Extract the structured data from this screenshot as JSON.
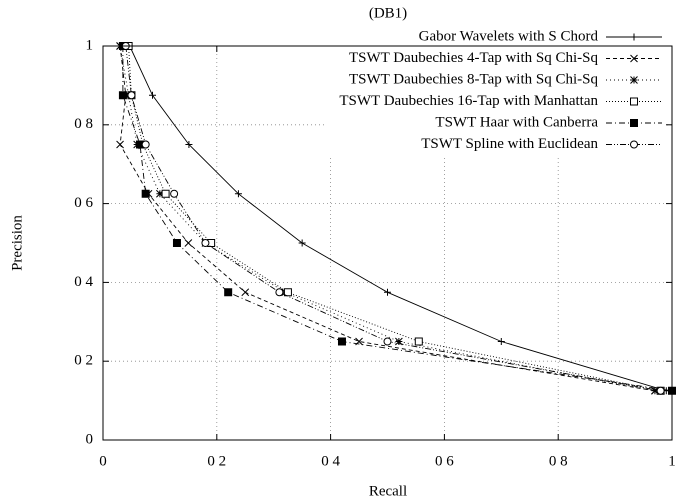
{
  "chart_data": {
    "type": "line",
    "title": "(DB1)",
    "x_label": "Recall",
    "y_label": "Precision",
    "xlim": [
      0,
      1
    ],
    "ylim": [
      0,
      1
    ],
    "xticks": [
      0,
      {
        "value": 0.2,
        "label": "0 2"
      },
      {
        "value": 0.4,
        "label": "0 4"
      },
      {
        "value": 0.6,
        "label": "0 6"
      },
      {
        "value": 0.8,
        "label": "0 8"
      },
      1
    ],
    "yticks": [
      0,
      {
        "value": 0.2,
        "label": "0 2"
      },
      {
        "value": 0.4,
        "label": "0 4"
      },
      {
        "value": 0.6,
        "label": "0 6"
      },
      {
        "value": 0.8,
        "label": "0 8"
      },
      1
    ],
    "grid": true,
    "legend": "top-right",
    "series": [
      {
        "name": "Gabor Wavelets with S Chord",
        "color": "#000000",
        "marker": "plus",
        "dash": "none",
        "x": [
          0.047,
          0.087,
          0.151,
          0.238,
          0.35,
          0.5,
          0.7,
          0.99
        ],
        "values": [
          1,
          0.875,
          0.75,
          0.625,
          0.5,
          0.375,
          0.25,
          0.125
        ]
      },
      {
        "name": "TSWT Daubechies 4-Tap with Sq  Chi-Sq",
        "color": "#000000",
        "marker": "cross",
        "dash": "4,3",
        "x": [
          0.03,
          0.04,
          0.03,
          0.08,
          0.15,
          0.25,
          0.45,
          0.97
        ],
        "values": [
          1,
          0.875,
          0.75,
          0.625,
          0.5,
          0.375,
          0.25,
          0.125
        ]
      },
      {
        "name": "TSWT Daubechies 8-Tap with Sq  Chi-Sq",
        "color": "#000000",
        "marker": "star",
        "dash": "1,3",
        "x": [
          0.03,
          0.045,
          0.06,
          0.1,
          0.18,
          0.32,
          0.52,
          0.97
        ],
        "values": [
          1,
          0.875,
          0.75,
          0.625,
          0.5,
          0.375,
          0.25,
          0.125
        ]
      },
      {
        "name": "TSWT Daubechies 16-Tap with Manhattan",
        "color": "#000000",
        "marker": "square",
        "dash": "1,2",
        "x": [
          0.045,
          0.05,
          0.07,
          0.11,
          0.19,
          0.325,
          0.555,
          0.98
        ],
        "values": [
          1,
          0.875,
          0.75,
          0.625,
          0.5,
          0.375,
          0.25,
          0.125
        ]
      },
      {
        "name": "TSWT Haar with Canberra",
        "color": "#000000",
        "marker": "filled-square",
        "dash": "6,3,1,3",
        "x": [
          0.035,
          0.035,
          0.065,
          0.075,
          0.13,
          0.22,
          0.42,
          1.0
        ],
        "values": [
          1,
          0.875,
          0.75,
          0.625,
          0.5,
          0.375,
          0.25,
          0.125
        ]
      },
      {
        "name": "TSWT Spline with Euclidean",
        "color": "#000000",
        "marker": "circle",
        "dash": "6,2,1,2,1,2",
        "x": [
          0.04,
          0.05,
          0.075,
          0.125,
          0.18,
          0.31,
          0.5,
          0.98
        ],
        "values": [
          1,
          0.875,
          0.75,
          0.625,
          0.5,
          0.375,
          0.25,
          0.125
        ]
      }
    ]
  }
}
